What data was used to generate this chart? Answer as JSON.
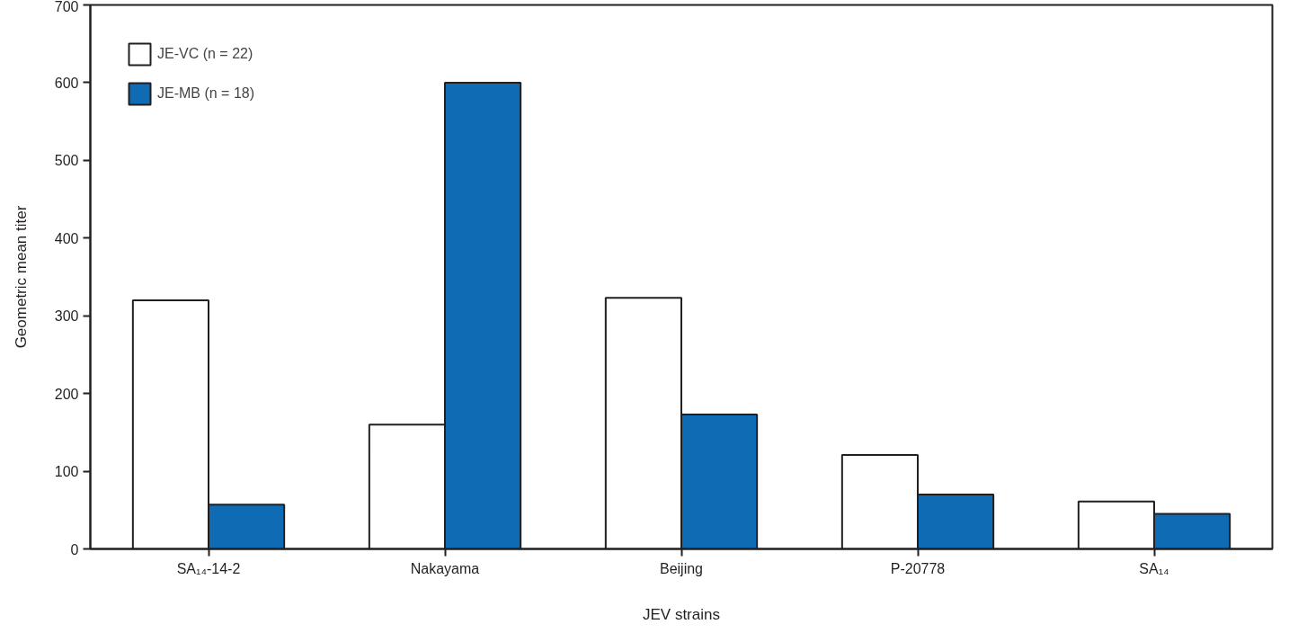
{
  "chart_data": {
    "type": "bar",
    "xlabel": "JEV strains",
    "ylabel": "Geometric mean titer",
    "categories": [
      "SA₁₄-14-2",
      "Nakayama",
      "Beijing",
      "P-20778",
      "SA₁₄"
    ],
    "series": [
      {
        "name": "JE-VC (n = 22)",
        "color": "#ffffff",
        "values": [
          320,
          160,
          323,
          121,
          61
        ]
      },
      {
        "name": "JE-MB (n = 18)",
        "color": "#0f6bb4",
        "values": [
          57,
          600,
          173,
          70,
          45
        ]
      }
    ],
    "ylim": [
      0,
      700
    ],
    "yticks": [
      0,
      100,
      200,
      300,
      400,
      500,
      600,
      700
    ],
    "grid": false,
    "legend": "top left"
  }
}
